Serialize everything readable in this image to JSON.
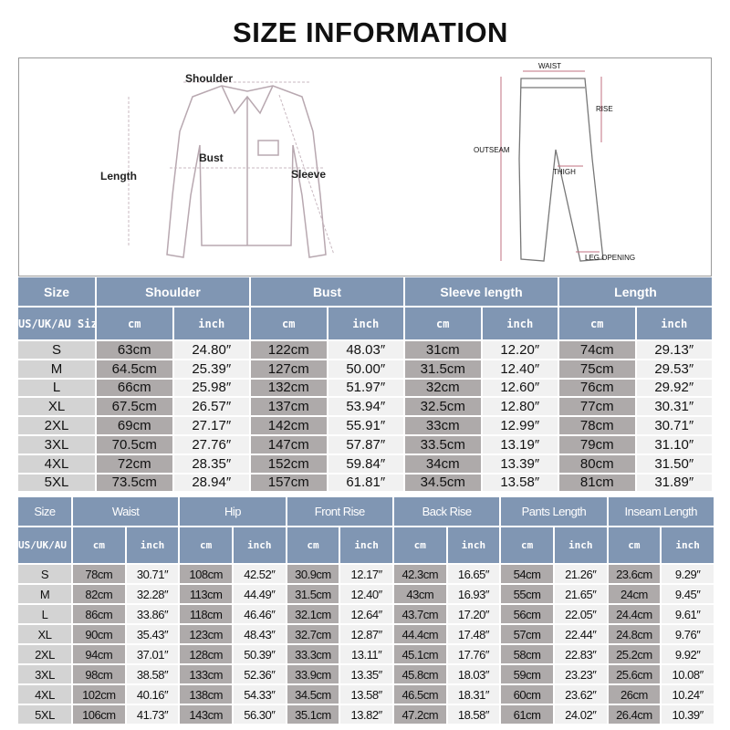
{
  "title": "SIZE INFORMATION",
  "diagram": {
    "shirt_labels": {
      "shoulder": "Shoulder",
      "bust": "Bust",
      "length": "Length",
      "sleeve": "Sleeve"
    },
    "pants_labels": {
      "waist": "WAIST",
      "rise": "RISE",
      "outseam": "OUTSEAM",
      "thigh": "THIGH",
      "leg_opening": "LEG OPENING"
    }
  },
  "colors": {
    "header": "#8096b3",
    "size_cell": "#d3d3d3",
    "cm_cell": "#aeaaaa",
    "inch_cell": "#f1f1f1"
  },
  "top_table": {
    "size_header": "Size",
    "size_subheader": "US/UK/AU Size",
    "groups": [
      "Shoulder",
      "Bust",
      "Sleeve length",
      "Length"
    ],
    "unit_cm": "cm",
    "unit_inch": "inch",
    "rows": [
      [
        "S",
        "63cm",
        "24.80″",
        "122cm",
        "48.03″",
        "31cm",
        "12.20″",
        "74cm",
        "29.13″"
      ],
      [
        "M",
        "64.5cm",
        "25.39″",
        "127cm",
        "50.00″",
        "31.5cm",
        "12.40″",
        "75cm",
        "29.53″"
      ],
      [
        "L",
        "66cm",
        "25.98″",
        "132cm",
        "51.97″",
        "32cm",
        "12.60″",
        "76cm",
        "29.92″"
      ],
      [
        "XL",
        "67.5cm",
        "26.57″",
        "137cm",
        "53.94″",
        "32.5cm",
        "12.80″",
        "77cm",
        "30.31″"
      ],
      [
        "2XL",
        "69cm",
        "27.17″",
        "142cm",
        "55.91″",
        "33cm",
        "12.99″",
        "78cm",
        "30.71″"
      ],
      [
        "3XL",
        "70.5cm",
        "27.76″",
        "147cm",
        "57.87″",
        "33.5cm",
        "13.19″",
        "79cm",
        "31.10″"
      ],
      [
        "4XL",
        "72cm",
        "28.35″",
        "152cm",
        "59.84″",
        "34cm",
        "13.39″",
        "80cm",
        "31.50″"
      ],
      [
        "5XL",
        "73.5cm",
        "28.94″",
        "157cm",
        "61.81″",
        "34.5cm",
        "13.58″",
        "81cm",
        "31.89″"
      ]
    ]
  },
  "bottom_table": {
    "size_header": "Size",
    "size_subheader": "US/UK/AU Size",
    "groups": [
      "Waist",
      "Hip",
      "Front Rise",
      "Back Rise",
      "Pants Length",
      "Inseam Length"
    ],
    "unit_cm": "cm",
    "unit_inch": "inch",
    "rows": [
      [
        "S",
        "78cm",
        "30.71″",
        "108cm",
        "42.52″",
        "30.9cm",
        "12.17″",
        "42.3cm",
        "16.65″",
        "54cm",
        "21.26″",
        "23.6cm",
        "9.29″"
      ],
      [
        "M",
        "82cm",
        "32.28″",
        "113cm",
        "44.49″",
        "31.5cm",
        "12.40″",
        "43cm",
        "16.93″",
        "55cm",
        "21.65″",
        "24cm",
        "9.45″"
      ],
      [
        "L",
        "86cm",
        "33.86″",
        "118cm",
        "46.46″",
        "32.1cm",
        "12.64″",
        "43.7cm",
        "17.20″",
        "56cm",
        "22.05″",
        "24.4cm",
        "9.61″"
      ],
      [
        "XL",
        "90cm",
        "35.43″",
        "123cm",
        "48.43″",
        "32.7cm",
        "12.87″",
        "44.4cm",
        "17.48″",
        "57cm",
        "22.44″",
        "24.8cm",
        "9.76″"
      ],
      [
        "2XL",
        "94cm",
        "37.01″",
        "128cm",
        "50.39″",
        "33.3cm",
        "13.11″",
        "45.1cm",
        "17.76″",
        "58cm",
        "22.83″",
        "25.2cm",
        "9.92″"
      ],
      [
        "3XL",
        "98cm",
        "38.58″",
        "133cm",
        "52.36″",
        "33.9cm",
        "13.35″",
        "45.8cm",
        "18.03″",
        "59cm",
        "23.23″",
        "25.6cm",
        "10.08″"
      ],
      [
        "4XL",
        "102cm",
        "40.16″",
        "138cm",
        "54.33″",
        "34.5cm",
        "13.58″",
        "46.5cm",
        "18.31″",
        "60cm",
        "23.62″",
        "26cm",
        "10.24″"
      ],
      [
        "5XL",
        "106cm",
        "41.73″",
        "143cm",
        "56.30″",
        "35.1cm",
        "13.82″",
        "47.2cm",
        "18.58″",
        "61cm",
        "24.02″",
        "26.4cm",
        "10.39″"
      ]
    ]
  }
}
